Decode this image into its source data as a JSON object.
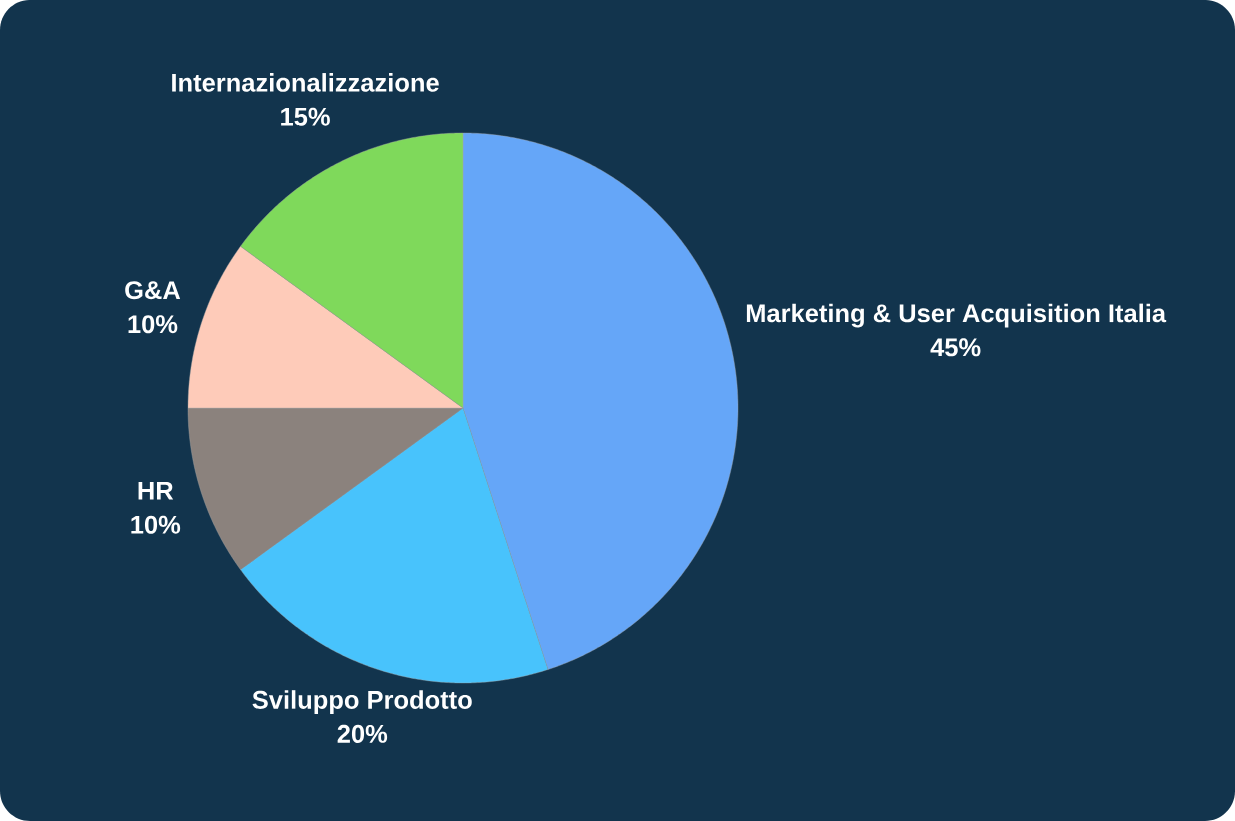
{
  "chart_data": {
    "type": "pie",
    "categories": [
      "Marketing & User Acquisition Italia",
      "Sviluppo Prodotto",
      "HR",
      "G&A",
      "Internazionalizzazione"
    ],
    "values": [
      45,
      20,
      10,
      10,
      15
    ],
    "colors": [
      "#65a6f8",
      "#48c3fc",
      "#8b827d",
      "#fecbb9",
      "#7fd95b"
    ],
    "value_labels": [
      "45%",
      "20%",
      "10%",
      "10%",
      "15%"
    ]
  }
}
